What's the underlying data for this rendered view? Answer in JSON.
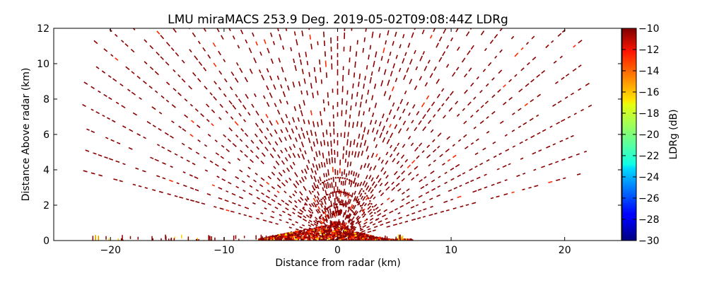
{
  "chart_data": {
    "type": "heatmap",
    "title": "LMU miraMACS 253.9 Deg. 2019-05-02T09:08:44Z  LDRg",
    "xlabel": "Distance from radar (km)",
    "ylabel": "Distance Above radar  (km)",
    "xlim": [
      -25,
      25
    ],
    "ylim": [
      0,
      12
    ],
    "x_ticks": [
      -20,
      -10,
      0,
      10,
      20
    ],
    "x_tick_labels": [
      "−20",
      "−10",
      "0",
      "10",
      "20"
    ],
    "y_ticks": [
      0,
      2,
      4,
      6,
      8,
      10,
      12
    ],
    "y_tick_labels": [
      "0",
      "2",
      "4",
      "6",
      "8",
      "10",
      "12"
    ],
    "grid": false,
    "colorbar": {
      "label": "LDRg (dB)",
      "range": [
        -30,
        -10
      ],
      "ticks": [
        -10,
        -12,
        -14,
        -16,
        -18,
        -20,
        -22,
        -24,
        -26,
        -28,
        -30
      ],
      "tick_labels": [
        "−10",
        "−12",
        "−14",
        "−16",
        "−18",
        "−20",
        "−22",
        "−24",
        "−26",
        "−28",
        "−30"
      ],
      "colormap": "jet"
    },
    "scan": {
      "azimuth_deg": 253.9,
      "elevation_min_deg": 10,
      "elevation_max_deg": 170,
      "max_range_km": 24,
      "dominant_value_db": -10,
      "boundary_layer_top_km": 1.0
    },
    "colors": {
      "dominant": "#8b0000",
      "near_surface": "#ff2a00",
      "speckle": "#ffd000"
    }
  }
}
